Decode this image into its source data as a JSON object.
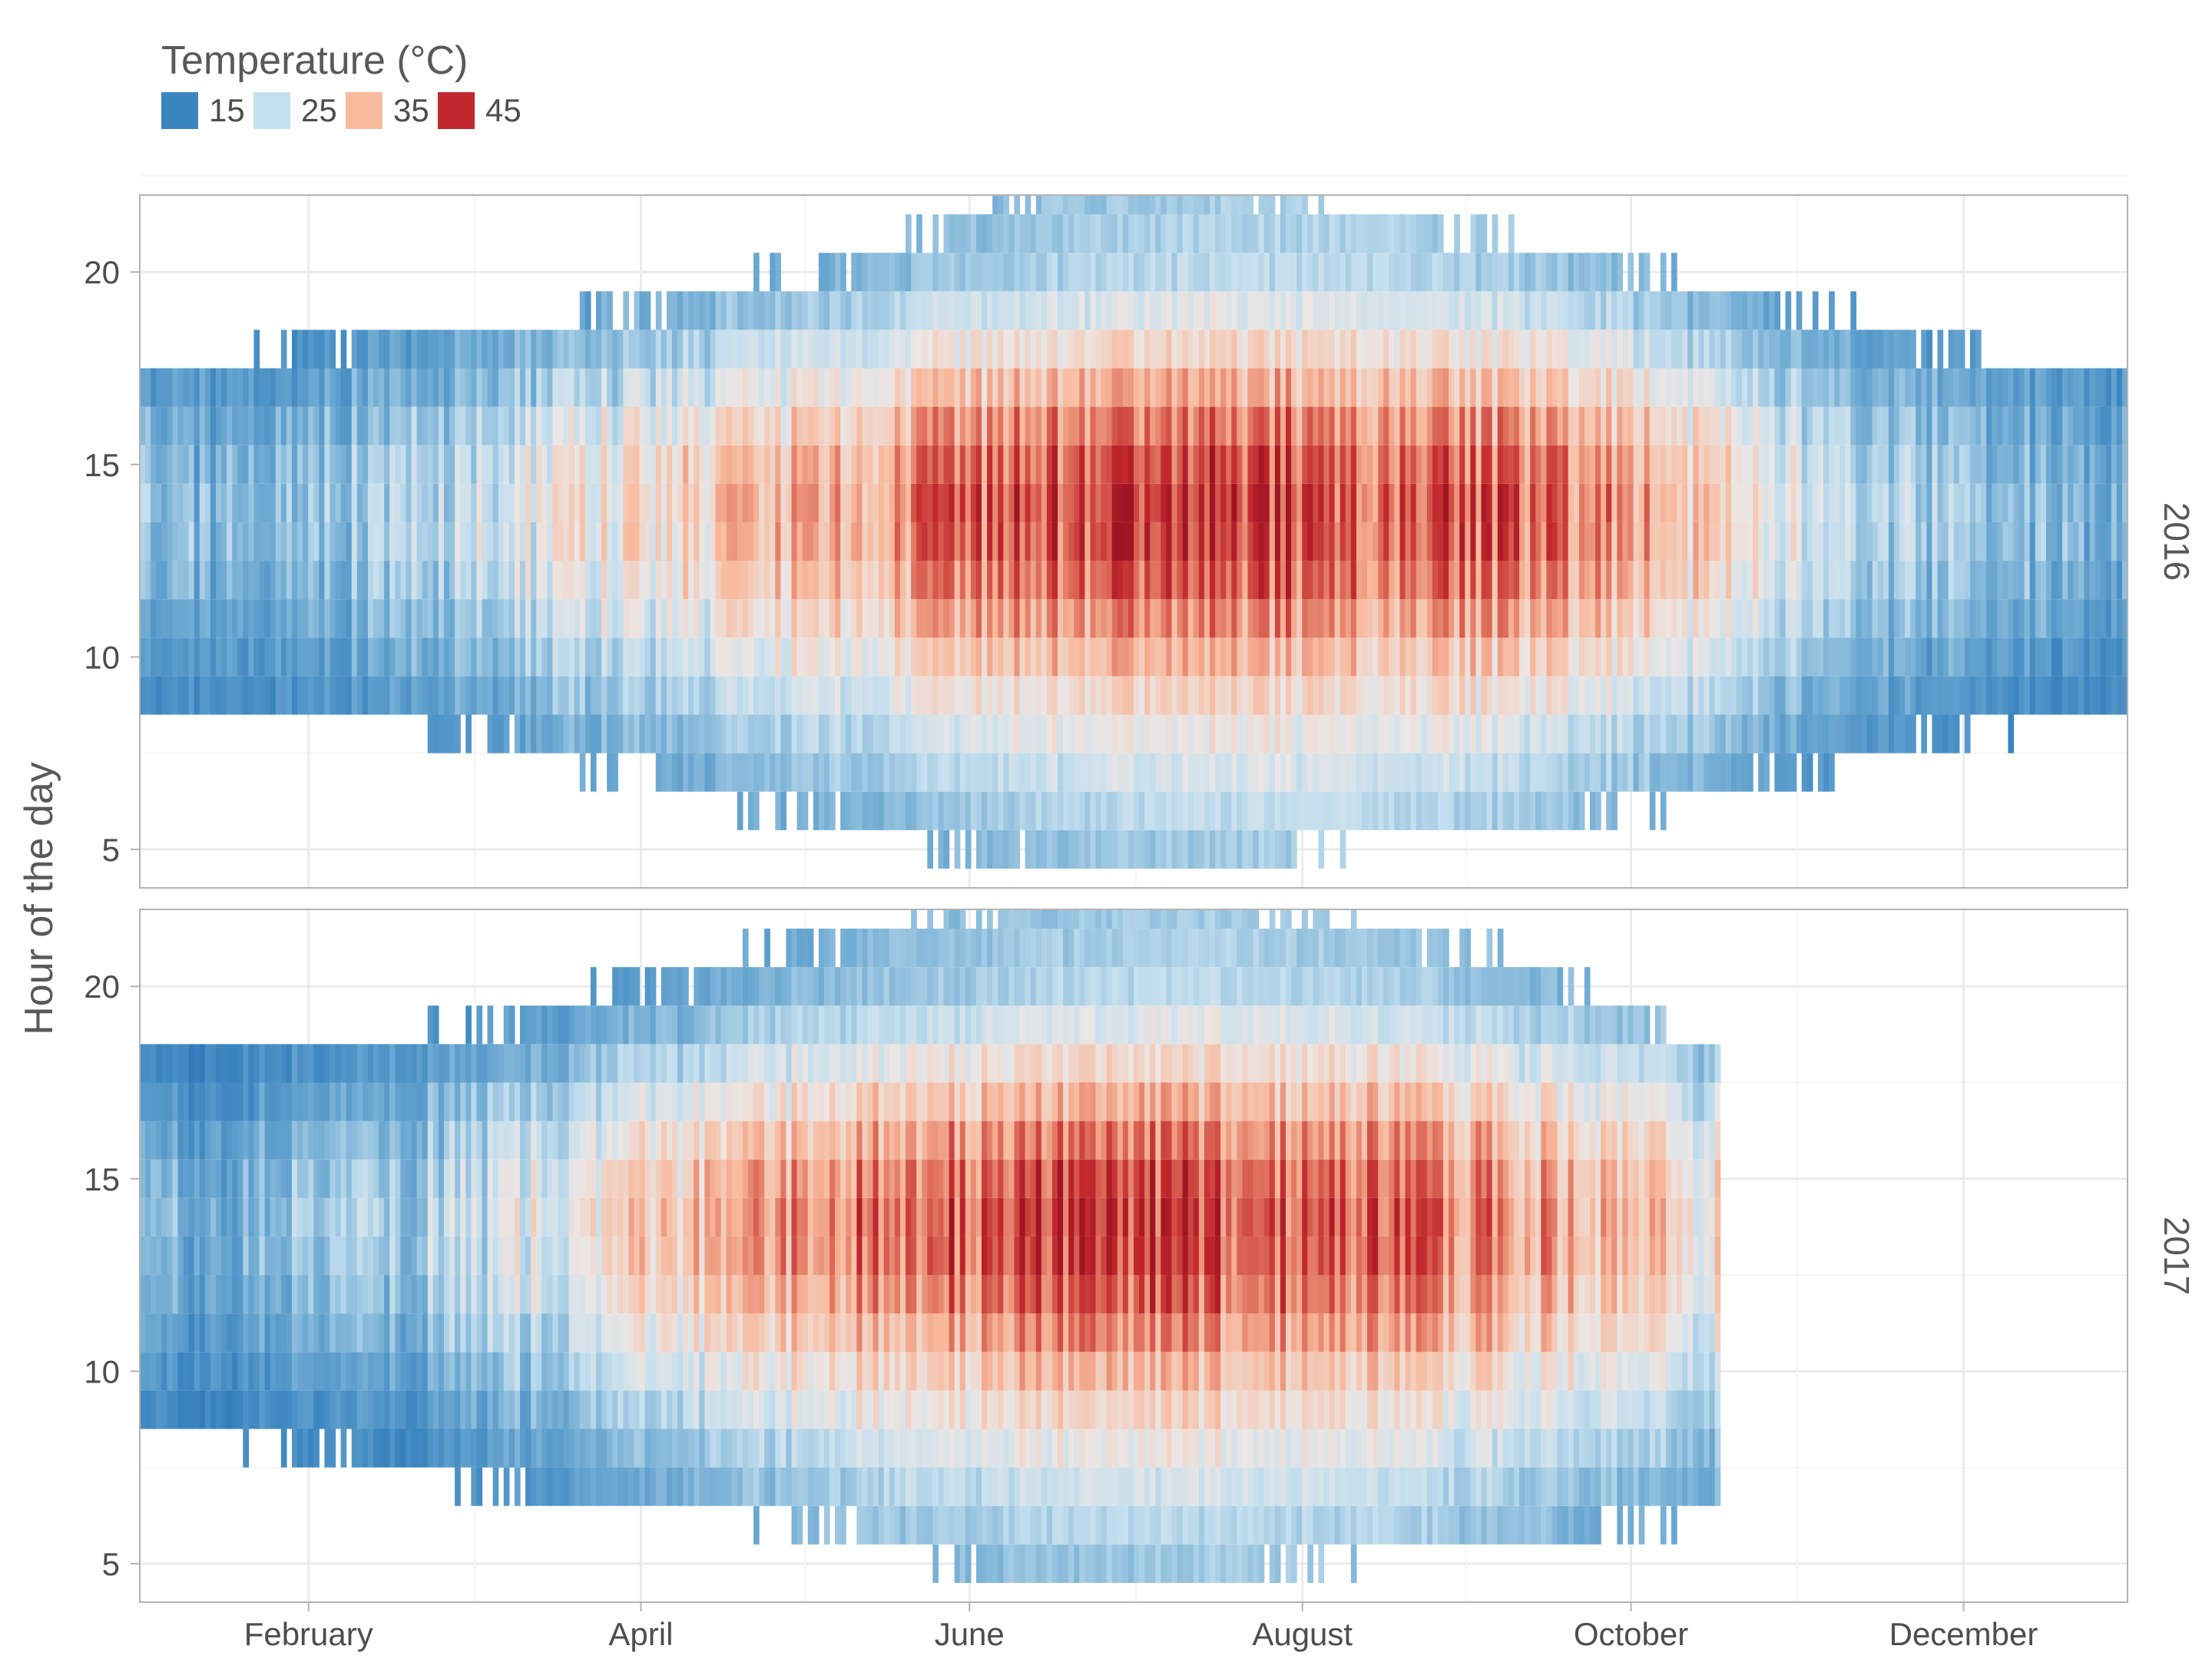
{
  "chart_data": {
    "type": "heatmap",
    "ylabel": "Hour of the day",
    "xlabel": "",
    "x_ticks": [
      "February",
      "April",
      "June",
      "August",
      "October",
      "December"
    ],
    "y_ticks": [
      5,
      10,
      15,
      20
    ],
    "y_range": [
      4,
      22
    ],
    "facets": [
      "2016",
      "2017"
    ],
    "legend": {
      "title": "Temperature (°C)",
      "position": "top-left",
      "entries": [
        {
          "label": "15",
          "color": "#3a84c0"
        },
        {
          "label": "25",
          "color": "#c4dfee"
        },
        {
          "label": "35",
          "color": "#f8b99c"
        },
        {
          "label": "45",
          "color": "#c1272d"
        }
      ]
    },
    "grid": true,
    "note": "Values estimated from the color bands; approximate monthly profile of temperature by hour for each facet.",
    "panels": [
      {
        "facet": "2016",
        "months": [
          "Jan",
          "Feb",
          "Mar",
          "Apr",
          "May",
          "Jun",
          "Jul",
          "Aug",
          "Sep",
          "Oct",
          "Nov",
          "Dec"
        ],
        "hour_start": [
          9,
          9,
          8,
          7,
          6,
          5,
          5,
          6,
          6,
          7,
          8,
          9
        ],
        "hour_end": [
          17,
          18,
          18,
          19,
          20,
          22,
          22,
          21,
          20,
          19,
          18,
          17
        ],
        "max_temp": [
          22,
          24,
          30,
          34,
          40,
          44,
          45,
          44,
          42,
          34,
          25,
          22
        ],
        "min_temp": [
          13,
          14,
          16,
          18,
          20,
          22,
          23,
          23,
          21,
          18,
          15,
          13
        ]
      },
      {
        "facet": "2017",
        "months": [
          "Jan",
          "Feb",
          "Mar",
          "Apr",
          "May",
          "Jun",
          "Jul",
          "Aug",
          "Sep",
          "Oct"
        ],
        "hour_start": [
          9,
          8,
          7,
          7,
          6,
          5,
          5,
          6,
          6,
          7
        ],
        "hour_end": [
          18,
          18,
          19,
          20,
          21,
          22,
          22,
          21,
          20,
          18
        ],
        "max_temp": [
          22,
          24,
          30,
          36,
          42,
          45,
          44,
          42,
          38,
          32
        ],
        "min_temp": [
          12,
          13,
          16,
          18,
          21,
          22,
          23,
          22,
          20,
          18
        ],
        "end_fraction_of_year": 0.795
      }
    ]
  }
}
